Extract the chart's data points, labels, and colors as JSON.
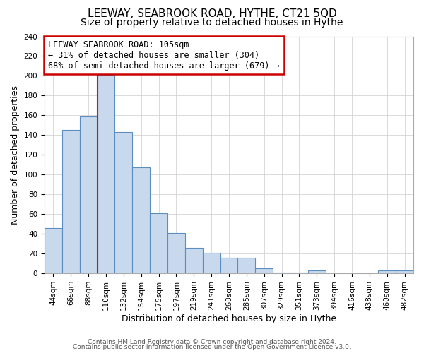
{
  "title": "LEEWAY, SEABROOK ROAD, HYTHE, CT21 5QD",
  "subtitle": "Size of property relative to detached houses in Hythe",
  "xlabel": "Distribution of detached houses by size in Hythe",
  "ylabel": "Number of detached properties",
  "categories": [
    "44sqm",
    "66sqm",
    "88sqm",
    "110sqm",
    "132sqm",
    "154sqm",
    "175sqm",
    "197sqm",
    "219sqm",
    "241sqm",
    "263sqm",
    "285sqm",
    "307sqm",
    "329sqm",
    "351sqm",
    "373sqm",
    "394sqm",
    "416sqm",
    "438sqm",
    "460sqm",
    "482sqm"
  ],
  "values": [
    46,
    145,
    159,
    201,
    143,
    107,
    61,
    41,
    26,
    21,
    16,
    16,
    5,
    1,
    1,
    3,
    0,
    0,
    0,
    3,
    3
  ],
  "bar_color": "#c9d9ed",
  "bar_edge_color": "#5b8dc0",
  "red_line_index": 3,
  "annotation_text": "LEEWAY SEABROOK ROAD: 105sqm\n← 31% of detached houses are smaller (304)\n68% of semi-detached houses are larger (679) →",
  "annotation_box_color": "#ffffff",
  "annotation_box_edge": "#cc0000",
  "ylim": [
    0,
    240
  ],
  "yticks": [
    0,
    20,
    40,
    60,
    80,
    100,
    120,
    140,
    160,
    180,
    200,
    220,
    240
  ],
  "footer1": "Contains HM Land Registry data © Crown copyright and database right 2024.",
  "footer2": "Contains public sector information licensed under the Open Government Licence v3.0.",
  "background_color": "#ffffff",
  "plot_bg_color": "#ffffff",
  "grid_color": "#cccccc",
  "title_fontsize": 11,
  "subtitle_fontsize": 10,
  "axis_label_fontsize": 9,
  "tick_fontsize": 7.5,
  "annotation_fontsize": 8.5,
  "footer_fontsize": 6.5
}
